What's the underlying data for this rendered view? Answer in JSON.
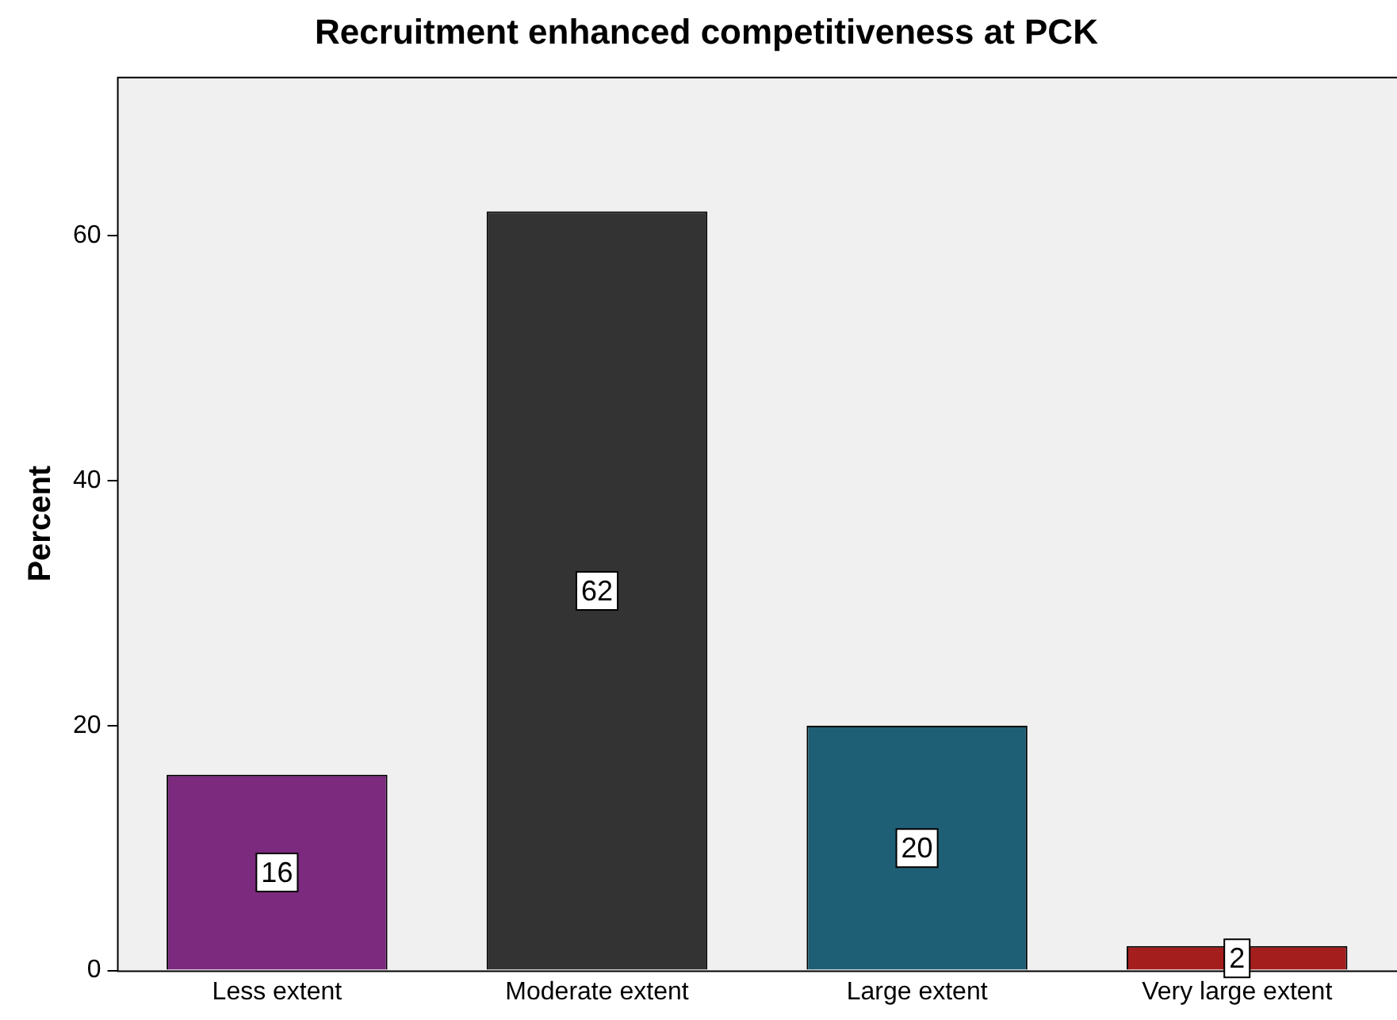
{
  "chart_data": {
    "type": "bar",
    "title": "Recruitment enhanced competitiveness at PCK",
    "ylabel": "Percent",
    "categories": [
      "Less extent",
      "Moderate extent",
      "Large extent",
      "Very large extent"
    ],
    "values": [
      16,
      62,
      20,
      2
    ],
    "colors": [
      "#7b2a7e",
      "#333333",
      "#1f5f75",
      "#a51e1e"
    ],
    "ylim": [
      0,
      73
    ],
    "yticks": [
      0,
      20,
      40,
      60
    ],
    "grid": false,
    "legend": false,
    "data_labels": true
  }
}
